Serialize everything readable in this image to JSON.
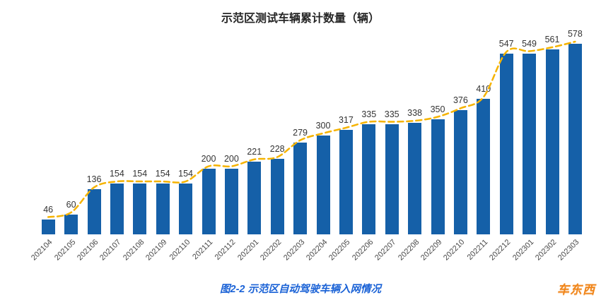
{
  "title": "示范区测试车辆累计数量（辆）",
  "caption": "图2-2 示范区自动驾驶车辆入网情况",
  "watermark": "车东西",
  "colors": {
    "bar": "#1560a8",
    "line": "#f5b301",
    "caption": "#1a62d6",
    "watermark": "#f08519",
    "value_label": "#333333",
    "tick_label": "#4a4a4a"
  },
  "chart_data": {
    "type": "bar",
    "title": "示范区测试车辆累计数量（辆）",
    "categories": [
      "202104",
      "202105",
      "202106",
      "202107",
      "202108",
      "202109",
      "202110",
      "202111",
      "202112",
      "202201",
      "202202",
      "202203",
      "202204",
      "202205",
      "202206",
      "202207",
      "202208",
      "202209",
      "202210",
      "202211",
      "202212",
      "202301",
      "202302",
      "202303"
    ],
    "values": [
      46,
      60,
      136,
      154,
      154,
      154,
      154,
      200,
      200,
      221,
      228,
      279,
      300,
      317,
      335,
      335,
      338,
      350,
      376,
      410,
      547,
      549,
      561,
      578
    ],
    "xlabel": "",
    "ylabel": "",
    "ylim": [
      0,
      600
    ],
    "grid": false,
    "legend": null,
    "data_labels": true,
    "trendline": {
      "type": "smooth",
      "style": "dashed",
      "color": "#f5b301"
    }
  }
}
